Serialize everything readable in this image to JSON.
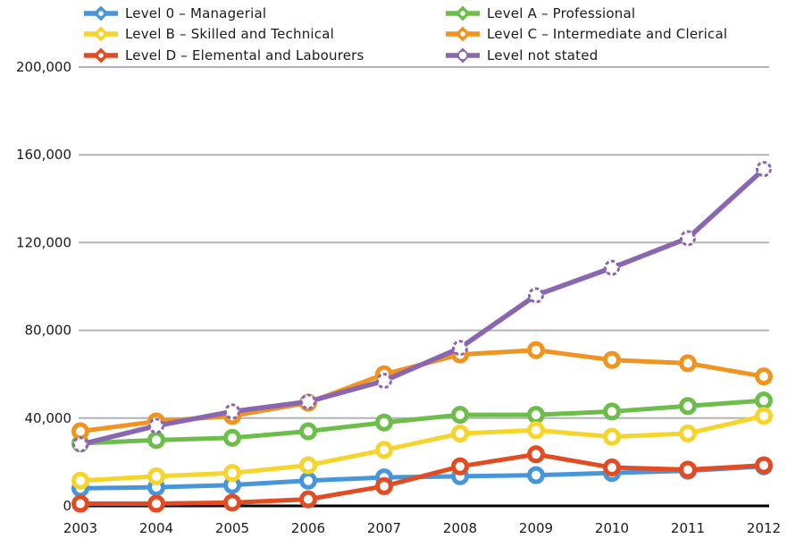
{
  "chart_data": {
    "type": "line",
    "title": "",
    "x": [
      2003,
      2004,
      2005,
      2006,
      2007,
      2008,
      2009,
      2010,
      2011,
      2012
    ],
    "xtick_labels": [
      "2003",
      "2004",
      "2005",
      "2006",
      "2007",
      "2008",
      "2009",
      "2010",
      "2011",
      "2012"
    ],
    "ylim": [
      0,
      200000
    ],
    "yticks": [
      0,
      40000,
      80000,
      120000,
      160000,
      200000
    ],
    "ytick_labels": [
      "0",
      "40,000",
      "80,000",
      "120,000",
      "160,000",
      "200,000"
    ],
    "grid": true,
    "legend_position": "top",
    "legend_columns": [
      [
        0,
        2,
        4
      ],
      [
        1,
        3,
        5
      ]
    ],
    "series": [
      {
        "name": "Level 0 – Managerial",
        "color": "#4796da",
        "values": [
          8000,
          8500,
          9500,
          11500,
          13000,
          13500,
          14000,
          15000,
          16000,
          18000
        ]
      },
      {
        "name": "Level A – Professional",
        "color": "#6cbd4a",
        "values": [
          28500,
          30000,
          31000,
          34000,
          38000,
          41500,
          41500,
          43000,
          45500,
          48000
        ]
      },
      {
        "name": "Level B – Skilled and Technical",
        "color": "#f5d42b",
        "values": [
          11500,
          13500,
          15000,
          18500,
          25500,
          33000,
          34500,
          31500,
          33000,
          41000
        ]
      },
      {
        "name": "Level C – Intermediate and Clerical",
        "color": "#f0941f",
        "values": [
          34000,
          38500,
          41000,
          47000,
          60000,
          69000,
          71000,
          66500,
          65000,
          59000
        ]
      },
      {
        "name": "Level D – Elemental and Labourers",
        "color": "#e34b22",
        "values": [
          1000,
          1000,
          1500,
          3000,
          9000,
          18000,
          23500,
          17500,
          16500,
          18500
        ]
      },
      {
        "name": "Level not stated",
        "color": "#8b66b0",
        "values": [
          28000,
          36500,
          43000,
          47500,
          57000,
          72000,
          96000,
          108500,
          122000,
          153500
        ],
        "marker_style": "dashed"
      }
    ]
  },
  "colors": {
    "gridline": "#b3b3b3",
    "axis_line": "#000000",
    "text": "#1b1b1b",
    "background": "#ffffff"
  }
}
